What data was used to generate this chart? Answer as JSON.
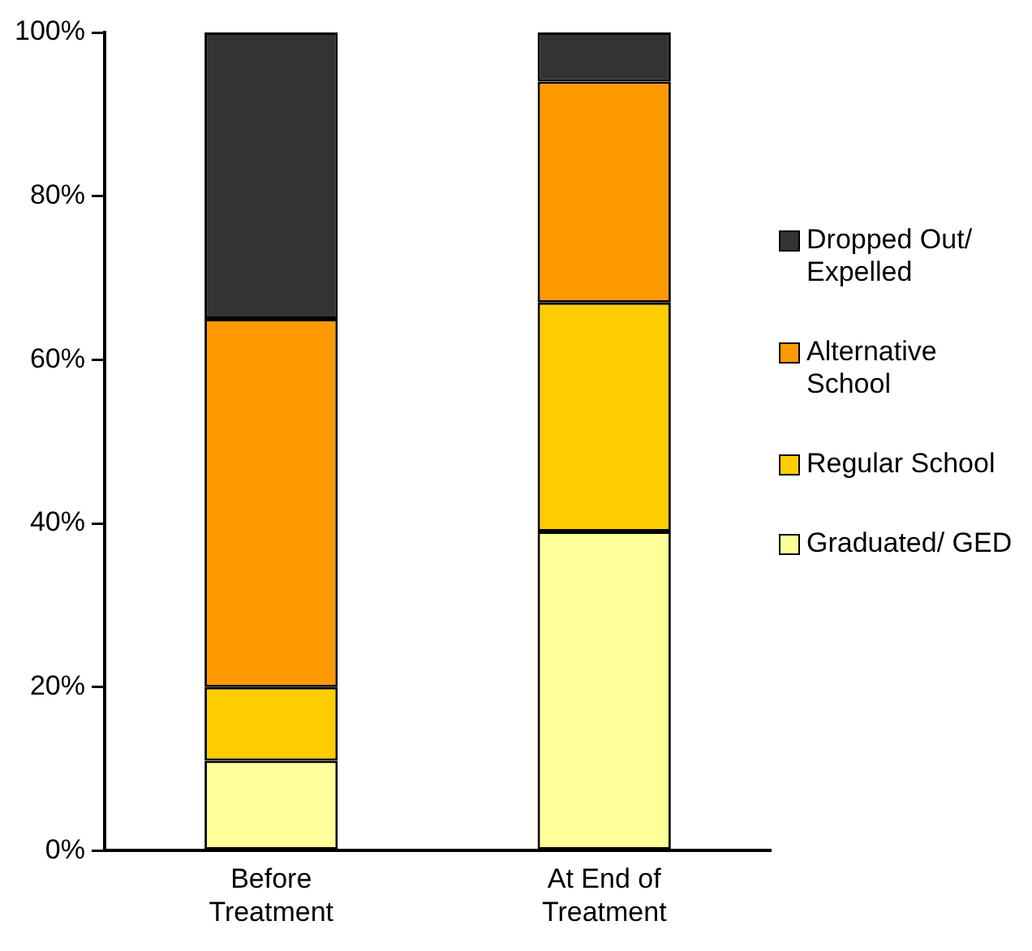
{
  "chart_data": {
    "type": "bar",
    "stacked": true,
    "categories": [
      "Before Treatment",
      "At End of Treatment"
    ],
    "series": [
      {
        "name": "Graduated/ GED",
        "color": "#ffff99",
        "values": [
          11,
          39
        ]
      },
      {
        "name": "Regular School",
        "color": "#ffcc00",
        "values": [
          9,
          28
        ]
      },
      {
        "name": "Alternative School",
        "color": "#ff9900",
        "values": [
          45,
          27
        ]
      },
      {
        "name": "Dropped Out/ Expelled",
        "color": "#333333",
        "values": [
          35,
          6
        ]
      }
    ],
    "ylim": [
      0,
      100
    ],
    "yticks": [
      {
        "value": 0,
        "label": "0%"
      },
      {
        "value": 20,
        "label": "20%"
      },
      {
        "value": 40,
        "label": "40%"
      },
      {
        "value": 60,
        "label": "60%"
      },
      {
        "value": 80,
        "label": "80%"
      },
      {
        "value": 100,
        "label": "100%"
      }
    ],
    "grid": false,
    "legend": "right"
  }
}
